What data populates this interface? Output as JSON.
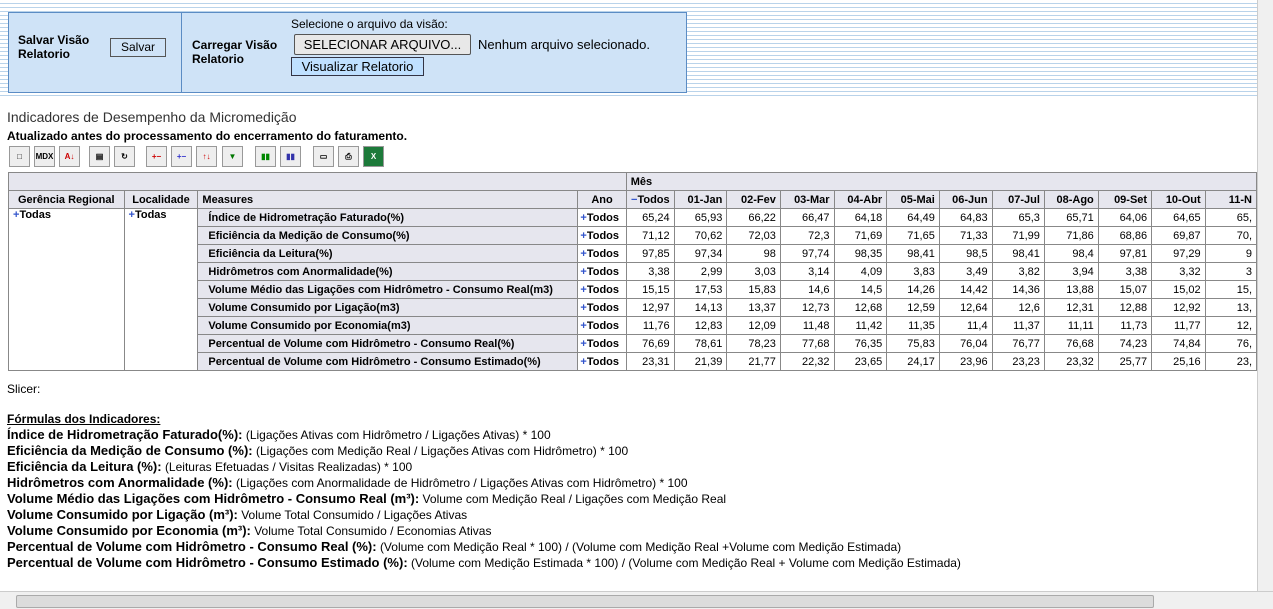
{
  "panel": {
    "save_label": "Salvar Visão Relatorio",
    "save_button": "Salvar",
    "load_label": "Carregar Visão Relatorio",
    "select_prompt": "Selecione o arquivo da visão:",
    "file_button": "SELECIONAR ARQUIVO...",
    "file_status": "Nenhum arquivo selecionado.",
    "view_button": "Visualizar Relatorio"
  },
  "report": {
    "title": "Indicadores de Desempenho da Micromedição",
    "subtitle": "Atualizado antes do processamento do encerramento do faturamento.",
    "toolbar_mdx": "MDX"
  },
  "table": {
    "column_group": "Mês",
    "headers": [
      "Gerência Regional",
      "Localidade",
      "Measures",
      "Ano",
      "Todos",
      "01-Jan",
      "02-Fev",
      "03-Mar",
      "04-Abr",
      "05-Mai",
      "06-Jun",
      "07-Jul",
      "08-Ago",
      "09-Set",
      "10-Out",
      "11-N"
    ],
    "region": "Todas",
    "locality": "Todas",
    "rows": [
      {
        "measure": "Índice de Hidrometração Faturado(%)",
        "year": "Todos",
        "values": [
          "65,24",
          "65,93",
          "66,22",
          "66,47",
          "64,18",
          "64,49",
          "64,83",
          "65,3",
          "65,71",
          "64,06",
          "64,65",
          "65,"
        ]
      },
      {
        "measure": "Eficiência da Medição de Consumo(%)",
        "year": "Todos",
        "values": [
          "71,12",
          "70,62",
          "72,03",
          "72,3",
          "71,69",
          "71,65",
          "71,33",
          "71,99",
          "71,86",
          "68,86",
          "69,87",
          "70,"
        ]
      },
      {
        "measure": "Eficiência da Leitura(%)",
        "year": "Todos",
        "values": [
          "97,85",
          "97,34",
          "98",
          "97,74",
          "98,35",
          "98,41",
          "98,5",
          "98,41",
          "98,4",
          "97,81",
          "97,29",
          "9"
        ]
      },
      {
        "measure": "Hidrômetros com Anormalidade(%)",
        "year": "Todos",
        "values": [
          "3,38",
          "2,99",
          "3,03",
          "3,14",
          "4,09",
          "3,83",
          "3,49",
          "3,82",
          "3,94",
          "3,38",
          "3,32",
          "3"
        ]
      },
      {
        "measure": "Volume Médio das Ligações com Hidrômetro - Consumo Real(m3)",
        "year": "Todos",
        "values": [
          "15,15",
          "17,53",
          "15,83",
          "14,6",
          "14,5",
          "14,26",
          "14,42",
          "14,36",
          "13,88",
          "15,07",
          "15,02",
          "15,"
        ]
      },
      {
        "measure": "Volume Consumido por Ligação(m3)",
        "year": "Todos",
        "values": [
          "12,97",
          "14,13",
          "13,37",
          "12,73",
          "12,68",
          "12,59",
          "12,64",
          "12,6",
          "12,31",
          "12,88",
          "12,92",
          "13,"
        ]
      },
      {
        "measure": "Volume Consumido por Economia(m3)",
        "year": "Todos",
        "values": [
          "11,76",
          "12,83",
          "12,09",
          "11,48",
          "11,42",
          "11,35",
          "11,4",
          "11,37",
          "11,11",
          "11,73",
          "11,77",
          "12,"
        ]
      },
      {
        "measure": "Percentual de Volume com Hidrômetro - Consumo Real(%)",
        "year": "Todos",
        "values": [
          "76,69",
          "78,61",
          "78,23",
          "77,68",
          "76,35",
          "75,83",
          "76,04",
          "76,77",
          "76,68",
          "74,23",
          "74,84",
          "76,"
        ]
      },
      {
        "measure": "Percentual de Volume com Hidrômetro - Consumo Estimado(%)",
        "year": "Todos",
        "values": [
          "23,31",
          "21,39",
          "21,77",
          "22,32",
          "23,65",
          "24,17",
          "23,96",
          "23,23",
          "23,32",
          "25,77",
          "25,16",
          "23,"
        ]
      }
    ],
    "slicer": "Slicer:"
  },
  "formulas": {
    "heading": "Fórmulas dos Indicadores:",
    "items": [
      {
        "name": "Índice de Hidrometração Faturado(%):",
        "formula": "(Ligações Ativas com Hidrômetro / Ligações Ativas) * 100"
      },
      {
        "name": "Eficiência da Medição de Consumo (%):",
        "formula": "(Ligações com Medição Real / Ligações Ativas com Hidrômetro) * 100"
      },
      {
        "name": "Eficiência da Leitura (%):",
        "formula": "(Leituras Efetuadas / Visitas Realizadas) * 100"
      },
      {
        "name": "Hidrômetros com Anormalidade (%):",
        "formula": "(Ligações com Anormalidade de Hidrômetro / Ligações Ativas com Hidrômetro) * 100"
      },
      {
        "name": "Volume Médio das Ligações com Hidrômetro - Consumo Real (m³):",
        "formula": "Volume com Medição Real / Ligações com Medição Real"
      },
      {
        "name": "Volume Consumido por Ligação (m³):",
        "formula": "Volume Total Consumido / Ligações Ativas"
      },
      {
        "name": "Volume Consumido por Economia (m³):",
        "formula": "Volume Total Consumido / Economias Ativas"
      },
      {
        "name": "Percentual de Volume com Hidrômetro - Consumo Real (%):",
        "formula": "(Volume com Medição Real * 100) / (Volume com Medição Real +Volume com Medição Estimada)"
      },
      {
        "name": "Percentual de Volume com Hidrômetro - Consumo Estimado (%):",
        "formula": "(Volume com Medição Estimada * 100) / (Volume com Medição Real + Volume com Medição Estimada)"
      }
    ]
  }
}
